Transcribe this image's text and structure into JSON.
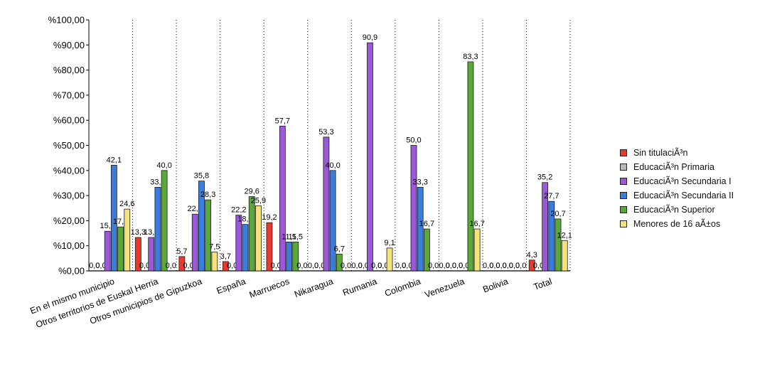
{
  "chart_data": {
    "type": "bar",
    "title": "",
    "xlabel": "",
    "ylabel": "",
    "ylim": [
      0,
      100
    ],
    "y_ticks": [
      "%0,00",
      "%10,00",
      "%20,00",
      "%30,00",
      "%40,00",
      "%50,00",
      "%60,00",
      "%70,00",
      "%80,00",
      "%90,00",
      "%100,00"
    ],
    "grid": "vertical dotted separators between categories",
    "legend_position": "right",
    "categories": [
      "En el mismo municipio",
      "Otros territorios de Euskal Herria",
      "Otros municipios de Gipuzkoa",
      "España",
      "Marruecos",
      "Nikaragua",
      "Rumania",
      "Colombia",
      "Venezuela",
      "Bolivia",
      "Total"
    ],
    "series": [
      {
        "name": "Sin titulaciÃ³n",
        "color": "#e8392b",
        "values": [
          0.0,
          13.3,
          5.7,
          3.7,
          19.2,
          0.0,
          0.0,
          0.0,
          0.0,
          0.0,
          4.3
        ],
        "labels": [
          "0,0",
          "13,3",
          "5,7",
          "3,7",
          "19,2",
          "0,0",
          "0,0",
          "0,0",
          "0,0",
          "0,0",
          "4,3"
        ]
      },
      {
        "name": "EducaciÃ³n Primaria",
        "color": "#b8b8b8",
        "values": [
          0.0,
          0.0,
          0.0,
          0.0,
          0.0,
          0.0,
          0.0,
          0.0,
          0.0,
          0.0,
          0.0
        ],
        "labels": [
          "0,0",
          "0,0",
          "0,0",
          "0,0",
          "0,0",
          "0,0",
          "0,0",
          "0,0",
          "0,0",
          "0,0",
          "0,0"
        ]
      },
      {
        "name": "EducaciÃ³n Secundaria I",
        "color": "#9b59d9",
        "values": [
          15.8,
          13.3,
          22.6,
          22.2,
          57.7,
          53.3,
          90.9,
          50.0,
          0.0,
          0.0,
          35.2
        ],
        "labels": [
          "15,8",
          "13,3",
          "22,6",
          "22,2",
          "57,7",
          "53,3",
          "90,9",
          "50,0",
          "0,0",
          "0,0",
          "35,2"
        ]
      },
      {
        "name": "EducaciÃ³n Secundaria II",
        "color": "#3b7ddd",
        "values": [
          42.1,
          33.3,
          35.8,
          18.5,
          11.5,
          40.0,
          0.0,
          33.3,
          0.0,
          0.0,
          27.7
        ],
        "labels": [
          "42,1",
          "33,3",
          "35,8",
          "18,5",
          "11,5",
          "40,0",
          "0,0",
          "33,3",
          "0,0",
          "0,0",
          "27,7"
        ]
      },
      {
        "name": "EducaciÃ³n Superior",
        "color": "#5aa83a",
        "values": [
          17.5,
          40.0,
          28.3,
          29.6,
          11.5,
          6.7,
          0.0,
          16.7,
          83.3,
          0.0,
          20.7
        ],
        "labels": [
          "17,5",
          "40,0",
          "28,3",
          "29,6",
          "11,5",
          "6,7",
          "0,0",
          "16,7",
          "83,3",
          "0,0",
          "20,7"
        ]
      },
      {
        "name": "Menores de 16 aÃ±os",
        "color": "#f5e27a",
        "values": [
          24.6,
          0.0,
          7.5,
          25.9,
          0.0,
          0.0,
          9.1,
          0.0,
          16.7,
          0.0,
          12.1
        ],
        "labels": [
          "24,6",
          "0,0",
          "7,5",
          "25,9",
          "0,0",
          "0,0",
          "9,1",
          "0,0",
          "16,7",
          "0,0",
          "12,1"
        ]
      }
    ]
  }
}
